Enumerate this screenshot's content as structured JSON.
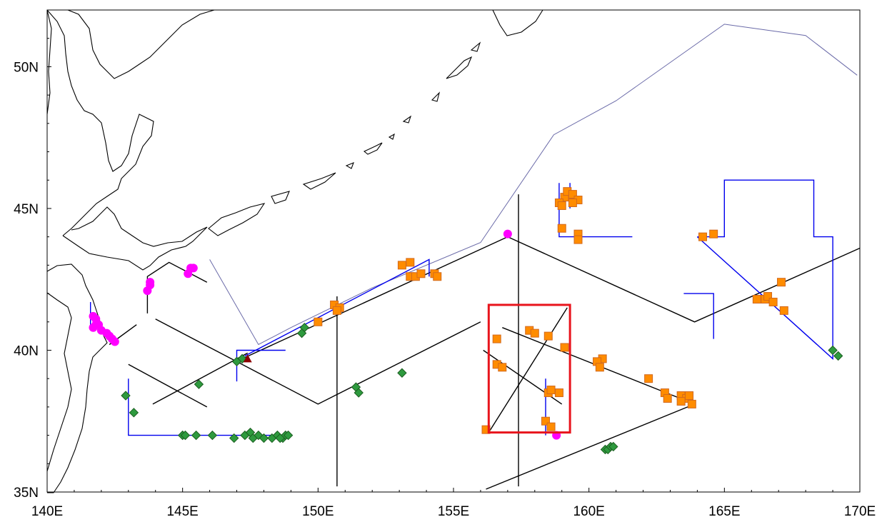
{
  "map": {
    "lon_range": [
      140,
      170
    ],
    "lat_range": [
      35,
      52
    ],
    "x_tick_labels": [
      {
        "lon": 140,
        "label": "140E"
      },
      {
        "lon": 145,
        "label": "145E"
      },
      {
        "lon": 150,
        "label": "150E"
      },
      {
        "lon": 155,
        "label": "155E"
      },
      {
        "lon": 160,
        "label": "160E"
      },
      {
        "lon": 165,
        "label": "165E"
      },
      {
        "lon": 170,
        "label": "170E"
      }
    ],
    "y_tick_labels": [
      {
        "lat": 35,
        "label": "35N"
      },
      {
        "lat": 40,
        "label": "40N"
      },
      {
        "lat": 45,
        "label": "45N"
      },
      {
        "lat": 50,
        "label": "50N"
      }
    ],
    "colors": {
      "coast": "#000000",
      "eez_boundary": "#6a6aa8",
      "black_track": "#000000",
      "blue_track": "#0000ee",
      "highlight_box": "#e8141c",
      "orange_square": "#ff8c00",
      "orange_square_edge": "#d2691e",
      "green_diamond": "#2e9a3e",
      "green_diamond_edge": "#1b5e20",
      "magenta_circle": "#ff00ff",
      "red_triangle": "#8b0000"
    },
    "highlight_box": {
      "lon": [
        156.3,
        159.3
      ],
      "lat": [
        37.1,
        41.6
      ]
    },
    "eez_boundary": [
      [
        146,
        43.2
      ],
      [
        147.8,
        40.2
      ],
      [
        149,
        40.8
      ],
      [
        152,
        42.2
      ],
      [
        156,
        43.8
      ],
      [
        158.7,
        47.6
      ],
      [
        161,
        48.8
      ],
      [
        165,
        51.5
      ],
      [
        168,
        51.1
      ],
      [
        169.9,
        49.7
      ]
    ],
    "black_tracks": [
      [
        [
          143.9,
          38.1
        ],
        [
          147.4,
          39.9
        ]
      ],
      [
        [
          145.9,
          38
        ],
        [
          143,
          39.5
        ]
      ],
      [
        [
          145.9,
          42.4
        ],
        [
          144.5,
          43.1
        ],
        [
          143.7,
          42.6
        ],
        [
          143.7,
          41.3
        ]
      ],
      [
        [
          142.3,
          40.2
        ],
        [
          143.3,
          40.9
        ]
      ],
      [
        [
          144,
          41.1
        ],
        [
          150,
          38.1
        ],
        [
          156,
          41
        ]
      ],
      [
        [
          147.2,
          39.7
        ],
        [
          157,
          44
        ],
        [
          163.9,
          41
        ],
        [
          170,
          43.6
        ]
      ],
      [
        [
          156.3,
          37.1
        ],
        [
          159.2,
          41.5
        ]
      ],
      [
        [
          156.8,
          40.8
        ],
        [
          163.9,
          38.1
        ]
      ],
      [
        [
          156.2,
          35.1
        ],
        [
          163.9,
          38.1
        ]
      ],
      [
        [
          156.1,
          40
        ],
        [
          159,
          38.1
        ]
      ],
      [
        [
          157.4,
          35.2
        ],
        [
          157.4,
          45.5
        ]
      ],
      [
        [
          150.7,
          35.2
        ],
        [
          150.7,
          41.9
        ]
      ]
    ],
    "blue_tracks": [
      [
        [
          143,
          39
        ],
        [
          143,
          37
        ],
        [
          148.9,
          37
        ]
      ],
      [
        [
          147,
          38.9
        ],
        [
          147,
          40
        ],
        [
          148.8,
          40
        ]
      ],
      [
        [
          147.3,
          39.8
        ],
        [
          154.1,
          43.2
        ],
        [
          154.1,
          42.6
        ]
      ],
      [
        [
          141.6,
          41.7
        ],
        [
          141.6,
          40.7
        ]
      ],
      [
        [
          158.9,
          45.9
        ],
        [
          158.9,
          44
        ],
        [
          161.6,
          44
        ]
      ],
      [
        [
          159.3,
          45.9
        ],
        [
          159.3,
          45
        ]
      ],
      [
        [
          163.5,
          42
        ],
        [
          164.6,
          42
        ],
        [
          164.6,
          40.4
        ]
      ],
      [
        [
          164,
          44
        ],
        [
          165,
          44
        ],
        [
          165,
          46
        ],
        [
          168.3,
          46
        ],
        [
          168.3,
          44
        ],
        [
          169,
          44
        ],
        [
          169,
          39.7
        ],
        [
          164,
          44
        ]
      ],
      [
        [
          158.4,
          39
        ],
        [
          158.4,
          37
        ]
      ]
    ],
    "orange_squares": [
      [
        153.1,
        43
      ],
      [
        153.4,
        43.1
      ],
      [
        153.4,
        42.6
      ],
      [
        153.6,
        42.6
      ],
      [
        153.8,
        42.7
      ],
      [
        154.3,
        42.7
      ],
      [
        154.4,
        42.6
      ],
      [
        150.6,
        41.6
      ],
      [
        150.8,
        41.5
      ],
      [
        150.7,
        41.4
      ],
      [
        150,
        41
      ],
      [
        159.1,
        45.4
      ],
      [
        159.2,
        45.6
      ],
      [
        159.4,
        45.5
      ],
      [
        159.6,
        45.3
      ],
      [
        159.4,
        45.2
      ],
      [
        158.9,
        45.2
      ],
      [
        159,
        45.1
      ],
      [
        159,
        44.3
      ],
      [
        159.6,
        44.1
      ],
      [
        159.6,
        43.9
      ],
      [
        164.2,
        44
      ],
      [
        164.6,
        44.1
      ],
      [
        166.2,
        41.8
      ],
      [
        166.5,
        41.8
      ],
      [
        166.6,
        41.9
      ],
      [
        166.8,
        41.7
      ],
      [
        167.2,
        41.4
      ],
      [
        167.1,
        42.4
      ],
      [
        157.8,
        40.7
      ],
      [
        158,
        40.6
      ],
      [
        158.5,
        40.5
      ],
      [
        159.1,
        40.1
      ],
      [
        156.6,
        39.5
      ],
      [
        156.8,
        39.4
      ],
      [
        156.6,
        40.4
      ],
      [
        160.5,
        39.7
      ],
      [
        160.3,
        39.6
      ],
      [
        160.4,
        39.4
      ],
      [
        162.2,
        39
      ],
      [
        162.8,
        38.5
      ],
      [
        162.9,
        38.3
      ],
      [
        163.4,
        38.4
      ],
      [
        163.6,
        38.3
      ],
      [
        163.7,
        38.4
      ],
      [
        163.4,
        38.2
      ],
      [
        163.8,
        38.1
      ],
      [
        158.5,
        38.5
      ],
      [
        158.6,
        38.6
      ],
      [
        158.9,
        38.5
      ],
      [
        158.4,
        37.5
      ],
      [
        158.6,
        37.3
      ],
      [
        156.2,
        37.2
      ]
    ],
    "green_diamonds": [
      [
        147.2,
        39.7
      ],
      [
        147,
        39.6
      ],
      [
        149.5,
        40.8
      ],
      [
        149.4,
        40.6
      ],
      [
        145.6,
        38.8
      ],
      [
        151.4,
        38.7
      ],
      [
        151.5,
        38.5
      ],
      [
        153.1,
        39.2
      ],
      [
        160.6,
        36.5
      ],
      [
        160.7,
        36.5
      ],
      [
        160.8,
        36.6
      ],
      [
        160.9,
        36.6
      ],
      [
        169,
        40
      ],
      [
        169.2,
        39.8
      ],
      [
        142.9,
        38.4
      ],
      [
        143.2,
        37.8
      ],
      [
        145,
        37
      ],
      [
        145.1,
        37
      ],
      [
        145.5,
        37
      ],
      [
        146.1,
        37
      ],
      [
        146.9,
        36.9
      ],
      [
        147.3,
        37
      ],
      [
        147.5,
        37.1
      ],
      [
        147.6,
        36.9
      ],
      [
        147.8,
        37
      ],
      [
        148,
        36.9
      ],
      [
        148.3,
        36.9
      ],
      [
        148.5,
        37
      ],
      [
        148.7,
        36.9
      ],
      [
        148.8,
        37
      ],
      [
        148.9,
        37
      ],
      [
        148.6,
        36.9
      ]
    ],
    "magenta_circles": [
      [
        141.7,
        41.2
      ],
      [
        141.8,
        41.1
      ],
      [
        141.8,
        40.9
      ],
      [
        141.9,
        40.9
      ],
      [
        141.7,
        40.8
      ],
      [
        142,
        40.7
      ],
      [
        142.2,
        40.6
      ],
      [
        142.3,
        40.5
      ],
      [
        142.4,
        40.4
      ],
      [
        142.5,
        40.3
      ],
      [
        143.8,
        42.4
      ],
      [
        143.8,
        42.3
      ],
      [
        143.7,
        42.1
      ],
      [
        145.3,
        42.9
      ],
      [
        145.2,
        42.7
      ],
      [
        145.4,
        42.9
      ],
      [
        157,
        44.1
      ],
      [
        158.8,
        37
      ]
    ],
    "red_triangle": [
      147.4,
      39.7
    ]
  }
}
